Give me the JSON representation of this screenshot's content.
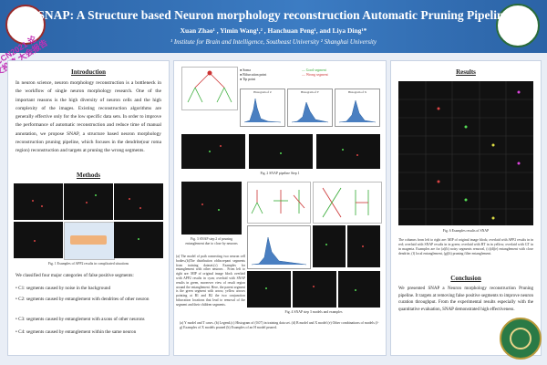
{
  "header": {
    "title": "SNAP: A Structure based Neuron morphology reconstruction Automatic Pruning Pipeline",
    "authors": "Xuan Zhao¹ , Yimin Wang¹,² , Hanchuan Peng¹, and Liya Ding¹*",
    "affiliation": "¹ Institute for Brain and Intelligence, Southeast University ² Shanghai University",
    "stamp": "CCCN2021 论文投稿 大会报告"
  },
  "introduction": {
    "heading": "Introduction",
    "text": "In neuron science, neuron morphology reconstruction is a bottleneck in the workflow of single neuron morphology research. One of the important reasons is the high diversity of neuron cells and the high complexity of the images. Existing reconstruction algorithms are generally effective only for the low specific data sets. In order to improve the performance of automatic reconstruction and reduce time of manual annotation, we propose SNAP, a structure based neuron morphology reconstruction pruning pipeline, which focuses in the dendrite(our roma region) reconstruction and targets at pruning the wrong segments."
  },
  "methods": {
    "heading": "Methods",
    "fig1_caption": "Fig. 1 Examples of APP2 results in complicated situations",
    "lead": "We classified four major categories of false positive segments:",
    "items": [
      "C1: segments caused by noise in the background",
      "C2: segments caused by entanglement with dendrites of other neuron",
      "C3: segments caused by entanglement with axons of other neurons",
      "C4: segments caused by entanglement within the same neuron"
    ]
  },
  "middle": {
    "fig2_caption": "Fig. 2 SNAP pipeline Step 1",
    "fig3_caption": "Fig. 3 SNAP step 2 of pruning entanglement due to close by neurons",
    "step2_text": "(a) The model of path connecting two neuron cell bodies.(b)The distribution ofdiscrepant segments from training dataset.(c) Examples for entanglement with other neurons . From left to right are: MIP of original image block overlaid with APP2 results in cyan; overlaid with SNAP results in green, moreover view of result region around the entanglement. Here, the parent segment is the green segment with arrow, yellow arrows pointing at B1 and B2 the two conjunction bifurcation locations that lead to removal of the segment and their children segments.",
    "fig4_caption": "Fig. 4 SNAP step 3 models and examples",
    "fig4_text": "(a) Y model and T cases. (b) Legend.(c) Histogram of (0.07) in training data set. (d) B model and X model (e) Other combinations of models (f-g) Examples of X models pruned (h) Examples of an H model pruned.",
    "legend": [
      "Soma",
      "Bifurcation point",
      "Tip point",
      "Good segment",
      "Wrong segment"
    ],
    "hist_titles": [
      "Histogram of Z",
      "Histogram of Y",
      "Histogram of X"
    ]
  },
  "results": {
    "heading": "Results",
    "fig_caption": "Fig. 6 Examples results of SNAP",
    "fig_text": "The columns from left to right are: MIP of original image block; overlaid with APP2 results in in red; overlaid with SNAP results in in green; overlaid with BT in in yellow; overlaid with GT in in magenta. Examples are for (a)(b) noisy segments removal, (c)(d)(e) entanglement with close dendrite, (f) local entanglement, (g)(h) pruning filter entanglement.",
    "conclusion_heading": "Conclusion",
    "conclusion_text": "We presented SNAP a Neuron morphology reconstruction Pruning pipeline. It targets at removing false positive segments to improve neuron curation throughput. From the experimental results especially with the quantitative evaluation, SNAP demonstrated high effectiveness."
  },
  "colors": {
    "banner": "#2b63a6",
    "stamp": "#c12fb5"
  },
  "chart_data": [
    {
      "type": "bar",
      "title": "Histogram of Z",
      "note": "skewed distribution"
    },
    {
      "type": "bar",
      "title": "Histogram of Y",
      "note": "skewed distribution"
    },
    {
      "type": "bar",
      "title": "Histogram of X",
      "note": "skewed distribution"
    }
  ]
}
